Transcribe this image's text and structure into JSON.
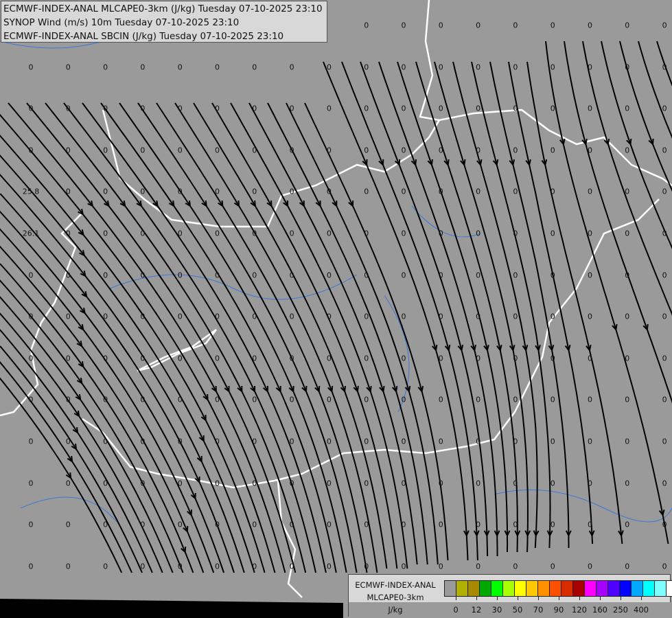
{
  "header": {
    "lines": [
      "ECMWF-INDEX-ANAL MLCAPE0-3km (J/kg) Tuesday 07-10-2025 23:10",
      "SYNOP Wind (m/s) 10m Tuesday 07-10-2025 23:10",
      "ECMWF-INDEX-ANAL SBCIN (J/kg) Tuesday 07-10-2025 23:10"
    ]
  },
  "map": {
    "background_color": "#9a9a9a",
    "border_color": "#ffffff",
    "river_color": "#3a78d8",
    "streamline_color": "#000000",
    "sbcin_grid": {
      "default_value": "0",
      "special_values": [
        {
          "row": 4,
          "col": 0,
          "value": "25.8"
        },
        {
          "row": 5,
          "col": 0,
          "value": "26.1"
        }
      ]
    }
  },
  "legend": {
    "title_lines": [
      "ECMWF-INDEX-ANAL",
      "MLCAPE0-3km",
      "J/kg"
    ],
    "colors": [
      "#9a9a9a",
      "#b0b000",
      "#a88a00",
      "#00a800",
      "#00ff00",
      "#a8ff00",
      "#ffff00",
      "#ffc800",
      "#ff9000",
      "#ff5000",
      "#d82c00",
      "#a80000",
      "#ff00ff",
      "#a800ff",
      "#5000ff",
      "#0000ff",
      "#00a8ff",
      "#00ffff",
      "#80ffff",
      "#ffffff"
    ],
    "ticks": [
      "0",
      "12",
      "30",
      "50",
      "70",
      "90",
      "120",
      "160",
      "250",
      "400"
    ]
  }
}
